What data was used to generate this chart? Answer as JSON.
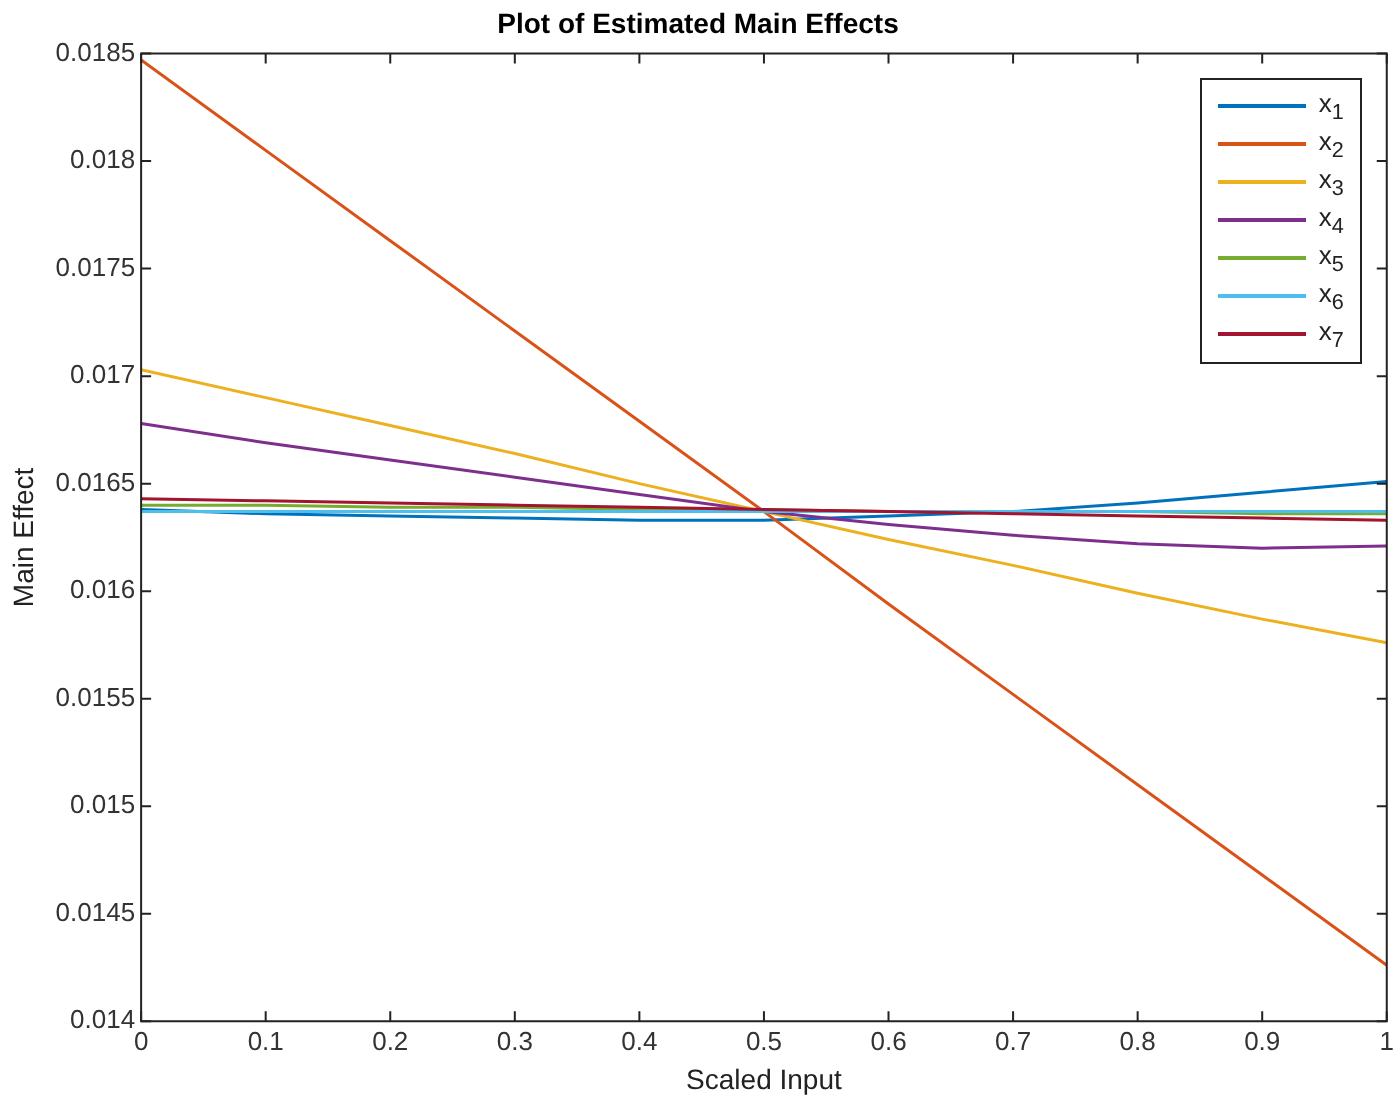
{
  "chart_data": {
    "type": "line",
    "title": "Plot of Estimated Main Effects",
    "xlabel": "Scaled Input",
    "ylabel": "Main Effect",
    "x": [
      0,
      0.1,
      0.2,
      0.3,
      0.4,
      0.5,
      0.6,
      0.7,
      0.8,
      0.9,
      1
    ],
    "xlim": [
      0,
      1
    ],
    "xticks": [
      0,
      0.1,
      0.2,
      0.3,
      0.4,
      0.5,
      0.6,
      0.7,
      0.8,
      0.9,
      1
    ],
    "ylim": [
      0.014,
      0.0185
    ],
    "yticks": [
      0.014,
      0.0145,
      0.015,
      0.0155,
      0.016,
      0.0165,
      0.017,
      0.0175,
      0.018,
      0.0185
    ],
    "grid": false,
    "legend": "top right",
    "marker": "none",
    "line_style": "solid",
    "series": [
      {
        "name": "x$_{1}$",
        "color": "#0072bd",
        "values": [
          0.01638,
          0.01636,
          0.01635,
          0.01634,
          0.01633,
          0.01633,
          0.01635,
          0.01637,
          0.01641,
          0.01646,
          0.01651
        ]
      },
      {
        "name": "x$_{2}$",
        "color": "#d95319",
        "values": [
          0.01847,
          0.01805,
          0.01763,
          0.01721,
          0.01679,
          0.01637,
          0.01594,
          0.01552,
          0.0151,
          0.01468,
          0.01426
        ]
      },
      {
        "name": "x$_{3}$",
        "color": "#edb120",
        "values": [
          0.01703,
          0.0169,
          0.01677,
          0.01664,
          0.0165,
          0.01637,
          0.01624,
          0.01612,
          0.01599,
          0.01587,
          0.01576
        ]
      },
      {
        "name": "x$_{4}$",
        "color": "#7e2f8e",
        "values": [
          0.01678,
          0.01669,
          0.01661,
          0.01653,
          0.01645,
          0.01637,
          0.01631,
          0.01626,
          0.01622,
          0.0162,
          0.01621
        ]
      },
      {
        "name": "x$_{5}$",
        "color": "#77ac30",
        "values": [
          0.0164,
          0.0164,
          0.01639,
          0.01639,
          0.01638,
          0.01638,
          0.01637,
          0.01637,
          0.01637,
          0.01636,
          0.01636
        ]
      },
      {
        "name": "x$_{6}$",
        "color": "#4dbeee",
        "values": [
          0.01637,
          0.01637,
          0.01637,
          0.01637,
          0.01637,
          0.01637,
          0.01637,
          0.01637,
          0.01637,
          0.01637,
          0.01637
        ]
      },
      {
        "name": "x$_{7}$",
        "color": "#a2142f",
        "values": [
          0.01643,
          0.01642,
          0.01641,
          0.0164,
          0.01639,
          0.01638,
          0.01637,
          0.01636,
          0.01635,
          0.01634,
          0.01633
        ]
      }
    ]
  }
}
